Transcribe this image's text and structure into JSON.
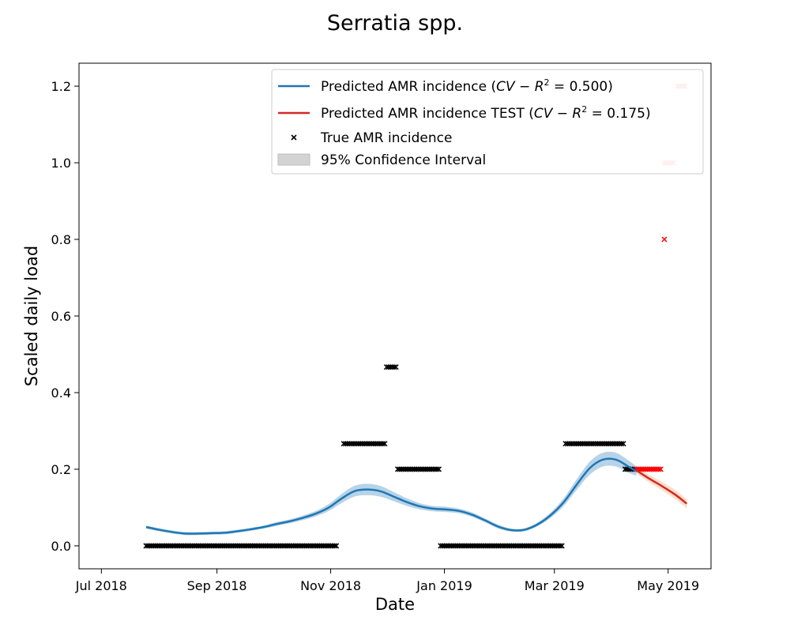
{
  "chart_data": {
    "type": "line",
    "title": "Serratia spp.",
    "xlabel": "Date",
    "ylabel": "Scaled daily load",
    "xlim": [
      "2018-06-19",
      "2019-05-24"
    ],
    "ylim": [
      -0.06,
      1.26
    ],
    "x_ticks": [
      {
        "date": "2018-07-01",
        "label": "Jul 2018"
      },
      {
        "date": "2018-09-01",
        "label": "Sep 2018"
      },
      {
        "date": "2018-11-01",
        "label": "Nov 2018"
      },
      {
        "date": "2019-01-01",
        "label": "Jan 2019"
      },
      {
        "date": "2019-03-01",
        "label": "Mar 2019"
      },
      {
        "date": "2019-05-01",
        "label": "May 2019"
      }
    ],
    "y_ticks": [
      {
        "value": 0.0,
        "label": "0.0"
      },
      {
        "value": 0.2,
        "label": "0.2"
      },
      {
        "value": 0.4,
        "label": "0.4"
      },
      {
        "value": 0.6,
        "label": "0.6"
      },
      {
        "value": 0.8,
        "label": "0.8"
      },
      {
        "value": 1.0,
        "label": "1.0"
      },
      {
        "value": 1.2,
        "label": "1.2"
      }
    ],
    "grid": false,
    "legend_position": "top-right",
    "series": [
      {
        "name": "Predicted AMR incidence ($CV - R^2$ = 0.500)",
        "legend_prefix": "Predicted AMR incidence (",
        "legend_math": "CV − R",
        "legend_sup": "2",
        "legend_suffix": " = 0.500)",
        "kind": "line",
        "color": "#1f77b4",
        "band_color": "#1f77b4",
        "x": [
          "2018-07-25",
          "2018-08-01",
          "2018-08-08",
          "2018-08-15",
          "2018-08-22",
          "2018-08-29",
          "2018-09-05",
          "2018-09-12",
          "2018-09-19",
          "2018-09-26",
          "2018-10-03",
          "2018-10-10",
          "2018-10-17",
          "2018-10-24",
          "2018-10-31",
          "2018-11-07",
          "2018-11-14",
          "2018-11-21",
          "2018-11-28",
          "2018-12-05",
          "2018-12-12",
          "2018-12-19",
          "2018-12-26",
          "2019-01-02",
          "2019-01-09",
          "2019-01-16",
          "2019-01-23",
          "2019-01-30",
          "2019-02-06",
          "2019-02-13",
          "2019-02-20",
          "2019-02-27",
          "2019-03-06",
          "2019-03-13",
          "2019-03-20",
          "2019-03-27",
          "2019-04-03",
          "2019-04-10",
          "2019-04-14"
        ],
        "y": [
          0.049,
          0.042,
          0.036,
          0.032,
          0.032,
          0.033,
          0.034,
          0.038,
          0.043,
          0.049,
          0.057,
          0.064,
          0.073,
          0.084,
          0.1,
          0.124,
          0.143,
          0.147,
          0.142,
          0.128,
          0.114,
          0.103,
          0.097,
          0.095,
          0.091,
          0.081,
          0.066,
          0.05,
          0.041,
          0.042,
          0.056,
          0.08,
          0.114,
          0.16,
          0.203,
          0.225,
          0.225,
          0.206,
          0.195
        ],
        "ci_half": [
          0.004,
          0.004,
          0.004,
          0.004,
          0.004,
          0.004,
          0.004,
          0.004,
          0.004,
          0.004,
          0.005,
          0.005,
          0.006,
          0.007,
          0.009,
          0.012,
          0.014,
          0.015,
          0.014,
          0.012,
          0.01,
          0.008,
          0.007,
          0.007,
          0.006,
          0.006,
          0.005,
          0.005,
          0.004,
          0.004,
          0.005,
          0.007,
          0.01,
          0.014,
          0.017,
          0.018,
          0.018,
          0.016,
          0.012
        ]
      },
      {
        "name": "Predicted AMR incidence TEST ($CV - R^2$ = 0.175)",
        "legend_prefix": "Predicted AMR incidence TEST (",
        "legend_math": "CV − R",
        "legend_sup": "2",
        "legend_suffix": " = 0.175)",
        "kind": "line",
        "color": "#d62728",
        "band_color": "#f4a460",
        "x": [
          "2019-04-14",
          "2019-04-21",
          "2019-04-28",
          "2019-05-05",
          "2019-05-11"
        ],
        "y": [
          0.197,
          0.175,
          0.155,
          0.133,
          0.11
        ],
        "ci_half": [
          0.008,
          0.01,
          0.011,
          0.012,
          0.012
        ]
      },
      {
        "name": "True AMR incidence",
        "kind": "scatter",
        "color": "#000000",
        "segments": [
          {
            "start": "2018-07-25",
            "end": "2018-11-04",
            "y": 0.0
          },
          {
            "start": "2018-11-08",
            "end": "2018-11-30",
            "y": 0.2667
          },
          {
            "start": "2018-12-01",
            "end": "2018-12-06",
            "y": 0.4667
          },
          {
            "start": "2018-12-07",
            "end": "2018-12-29",
            "y": 0.2
          },
          {
            "start": "2018-12-30",
            "end": "2019-03-05",
            "y": 0.0
          },
          {
            "start": "2019-03-07",
            "end": "2019-04-07",
            "y": 0.2667
          },
          {
            "start": "2019-04-08",
            "end": "2019-04-13",
            "y": 0.2
          }
        ]
      },
      {
        "name": "True AMR incidence TEST",
        "kind": "scatter",
        "color": "#ff0000",
        "segments": [
          {
            "start": "2019-04-14",
            "end": "2019-04-27",
            "y": 0.2
          },
          {
            "start": "2019-04-29",
            "end": "2019-04-29",
            "y": 0.8
          }
        ]
      },
      {
        "name": "True AMR incidence TEST faded",
        "kind": "scatter",
        "color": "#f5b7b1",
        "segments": [
          {
            "start": "2019-04-29",
            "end": "2019-05-04",
            "y": 1.0
          },
          {
            "start": "2019-05-06",
            "end": "2019-05-10",
            "y": 1.2
          }
        ]
      }
    ],
    "legend": [
      {
        "type": "line",
        "series": 0
      },
      {
        "type": "line",
        "series": 1
      },
      {
        "type": "marker",
        "label": "True AMR incidence"
      },
      {
        "type": "patch",
        "label": "95% Confidence Interval"
      }
    ]
  }
}
